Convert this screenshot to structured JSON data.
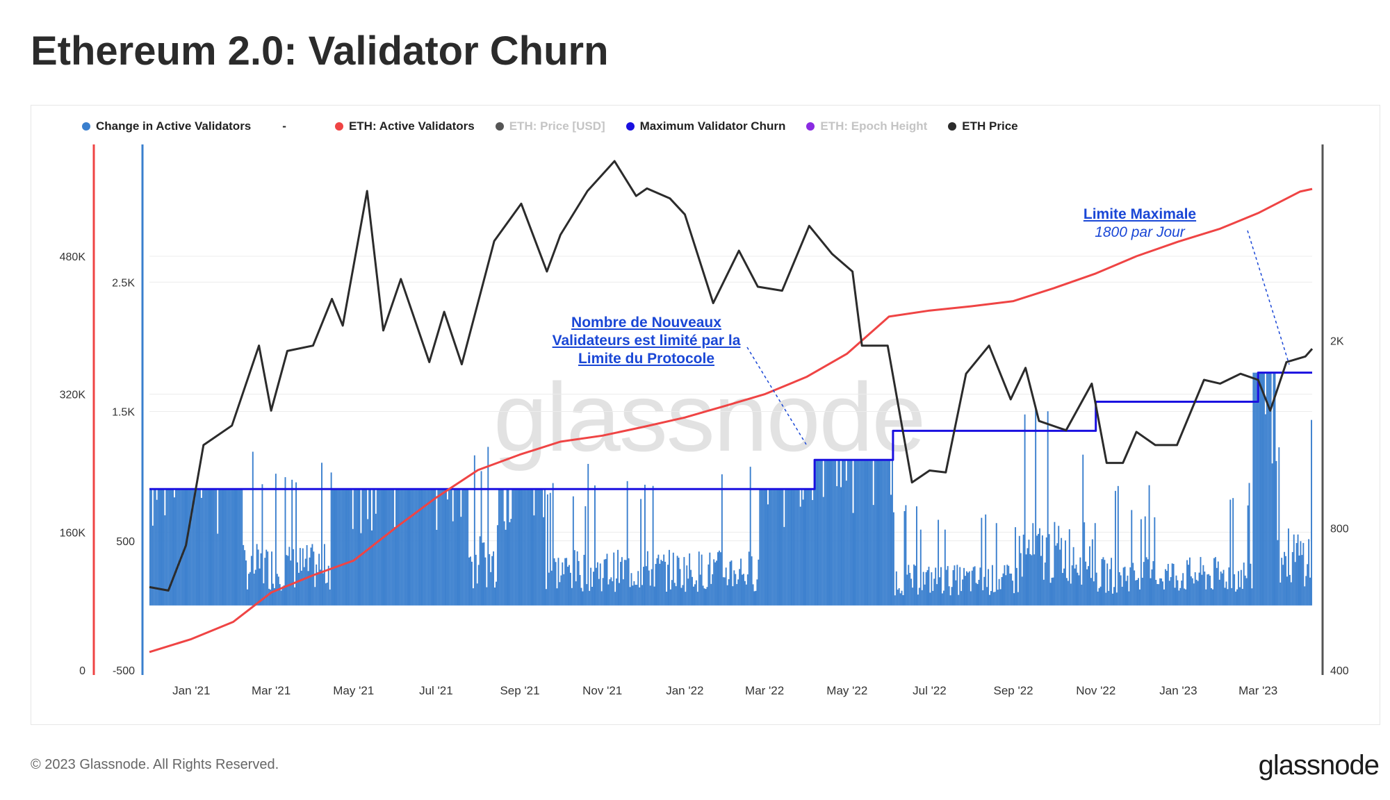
{
  "page": {
    "title": "Ethereum 2.0: Validator Churn"
  },
  "legend": [
    {
      "label": "Change in Active Validators",
      "color": "#3a7fce",
      "dim": false
    },
    {
      "label": "-",
      "color": "",
      "dim": false
    },
    {
      "label": "ETH: Active Validators",
      "color": "#ef4444",
      "dim": false
    },
    {
      "label": "ETH: Price [USD]",
      "color": "#555555",
      "dim": true
    },
    {
      "label": "Maximum Validator Churn",
      "color": "#1a10e0",
      "dim": false
    },
    {
      "label": "ETH: Epoch Height",
      "color": "#8a2be2",
      "dim": true
    },
    {
      "label": "ETH Price",
      "color": "#2b2b2b",
      "dim": false
    }
  ],
  "annotations": {
    "protocol_limit": "Nombre de Nouveaux Validateurs est limité par la Limite du Protocole",
    "max_limit_title": "Limite Maximale",
    "max_limit_sub": "1800 par Jour"
  },
  "watermark": "glassnode",
  "footer": {
    "copyright": "© 2023 Glassnode. All Rights Reserved.",
    "logo": "glassnode"
  },
  "chart_data": {
    "type": "bar",
    "x_tick_labels": [
      "Jan '21",
      "Mar '21",
      "May '21",
      "Jul '21",
      "Sep '21",
      "Nov '21",
      "Jan '22",
      "Mar '22",
      "May '22",
      "Jul '22",
      "Sep '22",
      "Nov '22",
      "Jan '23",
      "Mar '23"
    ],
    "axes": {
      "validators_axis": {
        "ticks": [
          "0",
          "160K",
          "320K",
          "480K"
        ],
        "range": [
          0,
          600000
        ],
        "color": "#ef4444"
      },
      "change_axis": {
        "ticks": [
          "-500",
          "500",
          "1.5K",
          "2.5K"
        ],
        "range": [
          -500,
          3500
        ],
        "color": "#3a7fce"
      },
      "price_axis": {
        "ticks": [
          "400",
          "800",
          "2K"
        ],
        "scale": "log",
        "range": [
          400,
          5000
        ],
        "color": "#2b2b2b"
      }
    },
    "x_range": [
      "2020-12-01",
      "2023-04-10"
    ],
    "series": [
      {
        "name": "Maximum Validator Churn",
        "color": "#1a10e0",
        "points": [
          [
            "2020-12-01",
            900
          ],
          [
            "2022-04-07",
            900
          ],
          [
            "2022-04-07",
            1125
          ],
          [
            "2022-06-04",
            1125
          ],
          [
            "2022-06-04",
            1350
          ],
          [
            "2022-11-01",
            1350
          ],
          [
            "2022-11-01",
            1575
          ],
          [
            "2023-03-01",
            1575
          ],
          [
            "2023-03-01",
            1800
          ],
          [
            "2023-04-10",
            1800
          ]
        ]
      },
      {
        "name": "ETH: Active Validators",
        "color": "#ef4444",
        "points": [
          [
            "2020-12-01",
            21000
          ],
          [
            "2021-01-01",
            36000
          ],
          [
            "2021-02-01",
            56000
          ],
          [
            "2021-03-01",
            90000
          ],
          [
            "2021-04-01",
            110000
          ],
          [
            "2021-05-01",
            127000
          ],
          [
            "2021-06-01",
            165000
          ],
          [
            "2021-07-01",
            200000
          ],
          [
            "2021-08-01",
            232000
          ],
          [
            "2021-09-01",
            250000
          ],
          [
            "2021-10-01",
            265000
          ],
          [
            "2021-11-01",
            272000
          ],
          [
            "2021-12-01",
            282000
          ],
          [
            "2022-01-01",
            293000
          ],
          [
            "2022-02-01",
            307000
          ],
          [
            "2022-03-01",
            320000
          ],
          [
            "2022-04-01",
            340000
          ],
          [
            "2022-05-01",
            367000
          ],
          [
            "2022-06-01",
            410000
          ],
          [
            "2022-07-01",
            417000
          ],
          [
            "2022-08-01",
            422000
          ],
          [
            "2022-09-01",
            428000
          ],
          [
            "2022-10-01",
            443000
          ],
          [
            "2022-11-01",
            460000
          ],
          [
            "2022-12-01",
            480000
          ],
          [
            "2023-01-01",
            497000
          ],
          [
            "2023-02-01",
            512000
          ],
          [
            "2023-03-01",
            530000
          ],
          [
            "2023-04-01",
            555000
          ],
          [
            "2023-04-10",
            558000
          ]
        ]
      },
      {
        "name": "ETH Price",
        "color": "#2b2b2b",
        "points": [
          [
            "2020-12-01",
            600
          ],
          [
            "2020-12-15",
            590
          ],
          [
            "2020-12-28",
            735
          ],
          [
            "2021-01-10",
            1200
          ],
          [
            "2021-01-31",
            1320
          ],
          [
            "2021-02-20",
            1950
          ],
          [
            "2021-03-01",
            1420
          ],
          [
            "2021-03-13",
            1900
          ],
          [
            "2021-04-01",
            1950
          ],
          [
            "2021-04-15",
            2450
          ],
          [
            "2021-04-23",
            2150
          ],
          [
            "2021-05-11",
            4150
          ],
          [
            "2021-05-23",
            2100
          ],
          [
            "2021-06-05",
            2700
          ],
          [
            "2021-06-26",
            1800
          ],
          [
            "2021-07-07",
            2300
          ],
          [
            "2021-07-20",
            1780
          ],
          [
            "2021-08-13",
            3250
          ],
          [
            "2021-09-02",
            3900
          ],
          [
            "2021-09-21",
            2800
          ],
          [
            "2021-10-01",
            3350
          ],
          [
            "2021-10-21",
            4150
          ],
          [
            "2021-11-10",
            4800
          ],
          [
            "2021-11-26",
            4050
          ],
          [
            "2021-12-04",
            4200
          ],
          [
            "2021-12-21",
            4000
          ],
          [
            "2022-01-01",
            3700
          ],
          [
            "2022-01-22",
            2400
          ],
          [
            "2022-02-10",
            3100
          ],
          [
            "2022-02-24",
            2600
          ],
          [
            "2022-03-14",
            2550
          ],
          [
            "2022-04-03",
            3500
          ],
          [
            "2022-04-20",
            3050
          ],
          [
            "2022-05-05",
            2800
          ],
          [
            "2022-05-12",
            1950
          ],
          [
            "2022-05-31",
            1950
          ],
          [
            "2022-06-18",
            1000
          ],
          [
            "2022-07-01",
            1060
          ],
          [
            "2022-07-13",
            1050
          ],
          [
            "2022-07-28",
            1700
          ],
          [
            "2022-08-14",
            1950
          ],
          [
            "2022-08-30",
            1500
          ],
          [
            "2022-09-10",
            1750
          ],
          [
            "2022-09-20",
            1350
          ],
          [
            "2022-10-10",
            1290
          ],
          [
            "2022-10-29",
            1620
          ],
          [
            "2022-11-09",
            1100
          ],
          [
            "2022-11-21",
            1100
          ],
          [
            "2022-12-01",
            1280
          ],
          [
            "2022-12-15",
            1200
          ],
          [
            "2022-12-31",
            1200
          ],
          [
            "2023-01-20",
            1650
          ],
          [
            "2023-02-01",
            1620
          ],
          [
            "2023-02-16",
            1700
          ],
          [
            "2023-03-01",
            1650
          ],
          [
            "2023-03-10",
            1420
          ],
          [
            "2023-03-22",
            1800
          ],
          [
            "2023-04-05",
            1850
          ],
          [
            "2023-04-10",
            1920
          ]
        ]
      },
      {
        "name": "Change in Active Validators",
        "color": "#3a7fce",
        "note": "daily bars; capped at churn limit during saturated periods",
        "periods": [
          {
            "from": "2020-12-01",
            "to": "2021-02-08",
            "typical": 900
          },
          {
            "from": "2021-02-08",
            "to": "2021-04-15",
            "typical": 330
          },
          {
            "from": "2021-04-15",
            "to": "2021-07-25",
            "typical": 900
          },
          {
            "from": "2021-07-25",
            "to": "2021-08-15",
            "typical": 380
          },
          {
            "from": "2021-08-15",
            "to": "2021-09-20",
            "typical": 900
          },
          {
            "from": "2021-09-20",
            "to": "2022-02-25",
            "typical": 300
          },
          {
            "from": "2022-02-25",
            "to": "2022-04-07",
            "typical": 900
          },
          {
            "from": "2022-04-07",
            "to": "2022-06-04",
            "typical": 1125
          },
          {
            "from": "2022-06-04",
            "to": "2022-09-05",
            "typical": 220
          },
          {
            "from": "2022-09-05",
            "to": "2022-11-01",
            "typical": 450
          },
          {
            "from": "2022-11-01",
            "to": "2023-02-25",
            "typical": 260
          },
          {
            "from": "2023-02-25",
            "to": "2023-03-14",
            "typical": 1800
          },
          {
            "from": "2023-03-14",
            "to": "2023-04-10",
            "typical": 420
          }
        ]
      }
    ]
  }
}
